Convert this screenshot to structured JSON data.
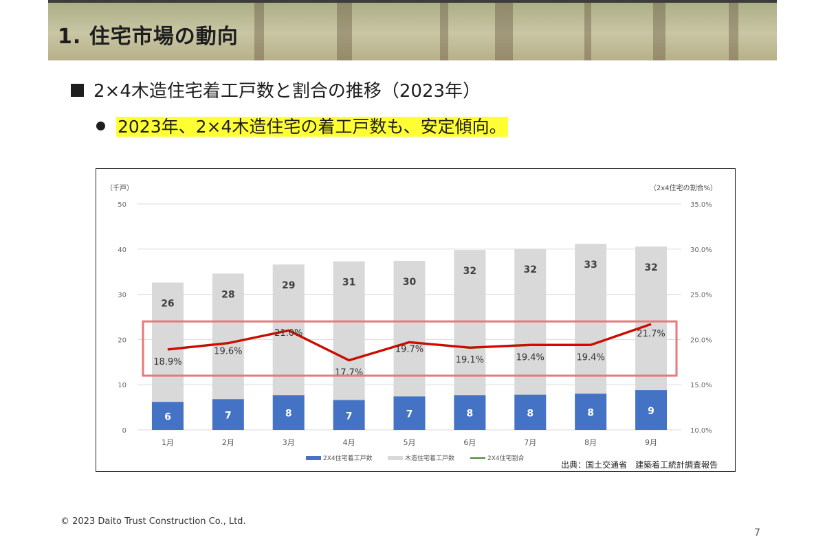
{
  "header": {
    "title": "1. 住宅市場の動向"
  },
  "section": {
    "heading": "2×4木造住宅着工戸数と割合の推移（2023年）"
  },
  "bullet": {
    "text": "2023年、2×4木造住宅の着工戸数も、安定傾向。"
  },
  "chart_data": {
    "type": "bar",
    "categories": [
      "1月",
      "2月",
      "3月",
      "4月",
      "5月",
      "6月",
      "7月",
      "8月",
      "9月"
    ],
    "series": [
      {
        "name": "2X4住宅着工戸数",
        "type": "bar",
        "axis": "left",
        "color": "#4472c4",
        "values": [
          6,
          7,
          8,
          7,
          7,
          8,
          8,
          8,
          9
        ],
        "heights": [
          6.2,
          6.8,
          7.7,
          6.6,
          7.4,
          7.7,
          7.8,
          8.0,
          8.8
        ]
      },
      {
        "name": "木造住宅着工戸数",
        "type": "bar",
        "axis": "left",
        "color": "#d9d9d9",
        "values": [
          26,
          28,
          29,
          31,
          30,
          32,
          32,
          33,
          32
        ],
        "totals": [
          32.6,
          34.6,
          36.6,
          37.3,
          37.4,
          39.8,
          40.1,
          41.2,
          40.6
        ]
      },
      {
        "name": "2X4住宅割合",
        "type": "line",
        "axis": "right",
        "color": "#e00000",
        "values": [
          18.9,
          19.6,
          21.0,
          17.7,
          19.7,
          19.1,
          19.4,
          19.4,
          21.7
        ],
        "labels": [
          "18.9%",
          "19.6%",
          "21.0%",
          "17.7%",
          "19.7%",
          "19.1%",
          "19.4%",
          "19.4%",
          "21.7%"
        ]
      }
    ],
    "y_left": {
      "label": "（千戸）",
      "min": 0,
      "max": 50,
      "ticks": [
        "0",
        "10",
        "20",
        "30",
        "40",
        "50"
      ]
    },
    "y_right": {
      "label": "（2x4住宅の割合%）",
      "min": 10,
      "max": 35,
      "ticks": [
        "10.0%",
        "15.0%",
        "20.0%",
        "25.0%",
        "30.0%",
        "35.0%"
      ]
    },
    "grid": true,
    "legend_position": "bottom",
    "highlight_box": {
      "y_from": 16.0,
      "y_to": 22.0,
      "axis": "right",
      "color": "#e8787a"
    },
    "source": "出典：国土交通省　建築着工統計調査報告"
  },
  "footer": {
    "copyright": "© 2023 Daito Trust Construction Co., Ltd.",
    "page_number": "7"
  }
}
